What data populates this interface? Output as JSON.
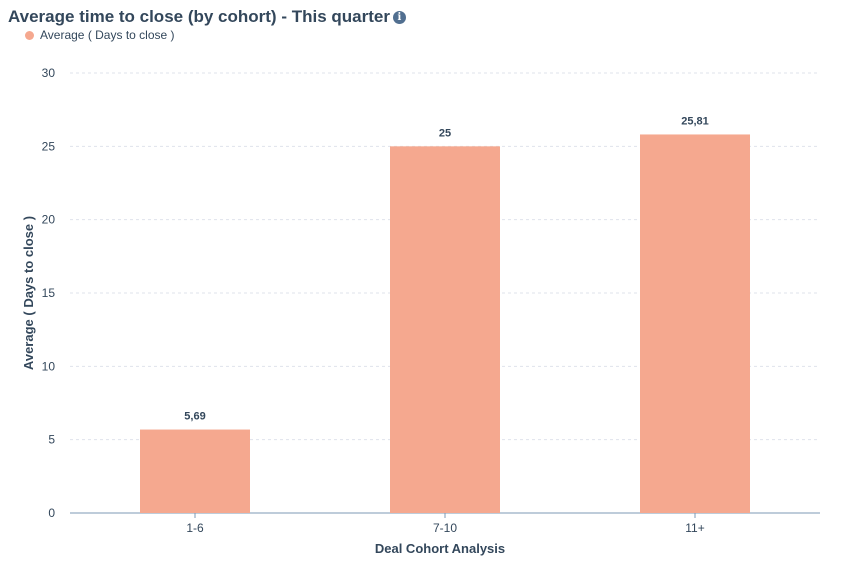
{
  "header": {
    "title": "Average time to close (by cohort) - This quarter",
    "info_icon": "info-icon"
  },
  "colors": {
    "bar": "#f5a88f",
    "axis_text": "#33475b",
    "grid": "#dfe3eb",
    "baseline": "#7c98b6"
  },
  "chart_data": {
    "type": "bar",
    "title": "Average time to close (by cohort) - This quarter",
    "xlabel": "Deal Cohort Analysis",
    "ylabel": "Average ( Days to close )",
    "categories": [
      "1-6",
      "7-10",
      "11+"
    ],
    "series": [
      {
        "name": "Average ( Days to close )",
        "values": [
          5.69,
          25,
          25.81
        ],
        "data_labels": [
          "5,69",
          "25",
          "25,81"
        ]
      }
    ],
    "ylim": [
      0,
      30
    ],
    "yticks": [
      0,
      5,
      10,
      15,
      20,
      25,
      30
    ],
    "grid": true,
    "legend_position": "top-left"
  }
}
